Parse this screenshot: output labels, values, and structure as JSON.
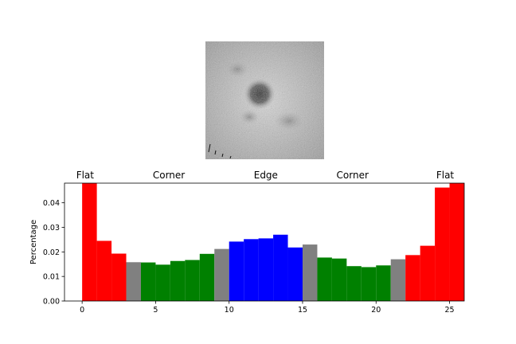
{
  "colors": {
    "flat": "#ff0000",
    "corner": "#008000",
    "edge": "#0000ff",
    "boundary": "#808080"
  },
  "chart_data": {
    "type": "bar",
    "xlabel": "",
    "ylabel": "Percentage",
    "xlim": [
      -1.2,
      26
    ],
    "ylim": [
      0,
      0.048
    ],
    "xticks": [
      0,
      5,
      10,
      15,
      20,
      25
    ],
    "yticks": [
      0.0,
      0.01,
      0.02,
      0.03,
      0.04
    ],
    "region_labels": [
      {
        "label": "Flat",
        "x": 0.2
      },
      {
        "label": "Corner",
        "x": 5.9
      },
      {
        "label": "Edge",
        "x": 12.5
      },
      {
        "label": "Corner",
        "x": 18.4
      },
      {
        "label": "Flat",
        "x": 24.7
      }
    ],
    "bars": [
      {
        "x": 0,
        "value": 0.048,
        "class": "flat"
      },
      {
        "x": 1,
        "value": 0.0245,
        "class": "flat"
      },
      {
        "x": 2,
        "value": 0.0193,
        "class": "flat"
      },
      {
        "x": 3,
        "value": 0.0158,
        "class": "boundary"
      },
      {
        "x": 4,
        "value": 0.0157,
        "class": "corner"
      },
      {
        "x": 5,
        "value": 0.0148,
        "class": "corner"
      },
      {
        "x": 6,
        "value": 0.0163,
        "class": "corner"
      },
      {
        "x": 7,
        "value": 0.0167,
        "class": "corner"
      },
      {
        "x": 8,
        "value": 0.0192,
        "class": "corner"
      },
      {
        "x": 9,
        "value": 0.0212,
        "class": "boundary"
      },
      {
        "x": 10,
        "value": 0.0242,
        "class": "edge"
      },
      {
        "x": 11,
        "value": 0.0252,
        "class": "edge"
      },
      {
        "x": 12,
        "value": 0.0255,
        "class": "edge"
      },
      {
        "x": 13,
        "value": 0.027,
        "class": "edge"
      },
      {
        "x": 14,
        "value": 0.0218,
        "class": "edge"
      },
      {
        "x": 15,
        "value": 0.023,
        "class": "boundary"
      },
      {
        "x": 16,
        "value": 0.0177,
        "class": "corner"
      },
      {
        "x": 17,
        "value": 0.0173,
        "class": "corner"
      },
      {
        "x": 18,
        "value": 0.0142,
        "class": "corner"
      },
      {
        "x": 19,
        "value": 0.0138,
        "class": "corner"
      },
      {
        "x": 20,
        "value": 0.0145,
        "class": "corner"
      },
      {
        "x": 21,
        "value": 0.017,
        "class": "boundary"
      },
      {
        "x": 22,
        "value": 0.0187,
        "class": "flat"
      },
      {
        "x": 23,
        "value": 0.0225,
        "class": "flat"
      },
      {
        "x": 24,
        "value": 0.0462,
        "class": "flat"
      },
      {
        "x": 25,
        "value": 0.048,
        "class": "flat"
      }
    ]
  }
}
